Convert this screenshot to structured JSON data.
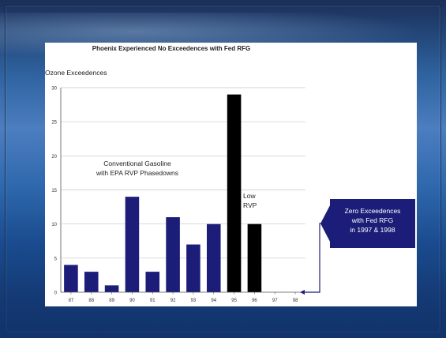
{
  "chart_data": {
    "type": "bar",
    "title": "Phoenix Experienced No Exceedences with Fed RFG",
    "ylabel": "Ozone Exceedences",
    "xlabel": "",
    "categories": [
      "87",
      "88",
      "89",
      "90",
      "91",
      "92",
      "93",
      "94",
      "95",
      "96",
      "97",
      "98"
    ],
    "values": [
      4,
      3,
      1,
      14,
      3,
      11,
      7,
      10,
      29,
      10,
      0,
      0
    ],
    "ylim": [
      0,
      30
    ],
    "yticks": [
      0,
      5,
      10,
      15,
      20,
      25,
      30
    ],
    "grid": true,
    "colors": {
      "conventional": "#1c1d78",
      "low_rvp": "#000000",
      "grid": "#c8c8c8",
      "callout_bg": "#1c1d78",
      "callout_text": "#ffffff",
      "arrow": "#1c1d78"
    },
    "bar_groups": [
      "conventional",
      "conventional",
      "conventional",
      "conventional",
      "conventional",
      "conventional",
      "conventional",
      "conventional",
      "low_rvp",
      "low_rvp",
      "none",
      "none"
    ],
    "annotations": {
      "conventional": [
        "Conventional Gasoline",
        "with EPA RVP Phasedowns"
      ],
      "low_rvp": [
        "Low",
        "RVP"
      ]
    },
    "callout": [
      "Zero Exceedences",
      "with Fed RFG",
      "in 1997 & 1998"
    ]
  }
}
